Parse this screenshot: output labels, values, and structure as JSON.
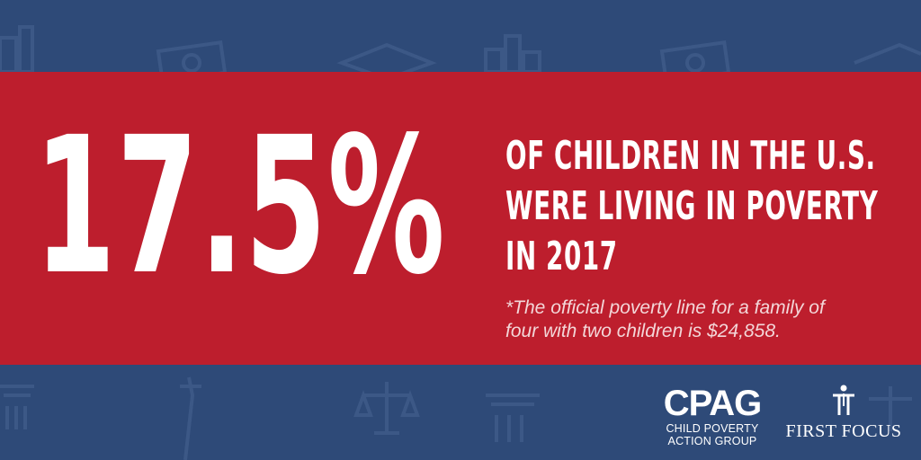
{
  "stat": {
    "value": "17.5%"
  },
  "headline": {
    "lines": [
      "OF CHILDREN IN THE U.S.",
      "WERE LIVING IN POVERTY",
      "IN 2017"
    ]
  },
  "footnote": {
    "lines": [
      "*The official poverty line for a family of",
      "four with two children is $24,858."
    ]
  },
  "logos": {
    "cpag": {
      "mark": "CPAG",
      "line1": "CHILD POVERTY",
      "line2": "ACTION GROUP"
    },
    "first_focus": {
      "name": "FIRST FOCUS"
    }
  },
  "colors": {
    "background": "#2e4a78",
    "banner": "#bd1e2d",
    "pattern": "#3c5886",
    "text": "#ffffff"
  },
  "pattern_icons": [
    "city-skyline-icon",
    "money-bill-icon",
    "graduation-cap-icon",
    "scales-of-justice-icon",
    "statue-of-liberty-icon",
    "column-capital-icon",
    "book-icon"
  ]
}
